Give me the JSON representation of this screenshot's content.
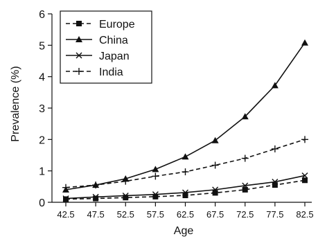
{
  "chart_data": {
    "type": "line",
    "xlabel": "Age",
    "ylabel": "Prevalence (%)",
    "categories": [
      "42.5",
      "47.5",
      "52.5",
      "57.5",
      "62.5",
      "67.5",
      "72.5",
      "77.5",
      "82.5"
    ],
    "ylim": [
      0,
      6
    ],
    "yticks": [
      "0",
      "1",
      "2",
      "3",
      "4",
      "5",
      "6"
    ],
    "grid": false,
    "legend_position": "top-left",
    "series": [
      {
        "name": "Europe",
        "marker": "square",
        "dash": "dashed",
        "values": [
          0.1,
          0.12,
          0.15,
          0.18,
          0.22,
          0.3,
          0.4,
          0.55,
          0.7
        ]
      },
      {
        "name": "China",
        "marker": "triangle",
        "dash": "solid",
        "values": [
          0.4,
          0.55,
          0.75,
          1.05,
          1.45,
          1.97,
          2.73,
          3.72,
          5.08
        ]
      },
      {
        "name": "Japan",
        "marker": "x",
        "dash": "solid",
        "values": [
          0.12,
          0.17,
          0.21,
          0.25,
          0.31,
          0.4,
          0.53,
          0.65,
          0.85
        ]
      },
      {
        "name": "India",
        "marker": "plus",
        "dash": "dashed",
        "values": [
          0.47,
          0.55,
          0.67,
          0.83,
          0.97,
          1.18,
          1.4,
          1.7,
          2.0
        ]
      }
    ]
  }
}
